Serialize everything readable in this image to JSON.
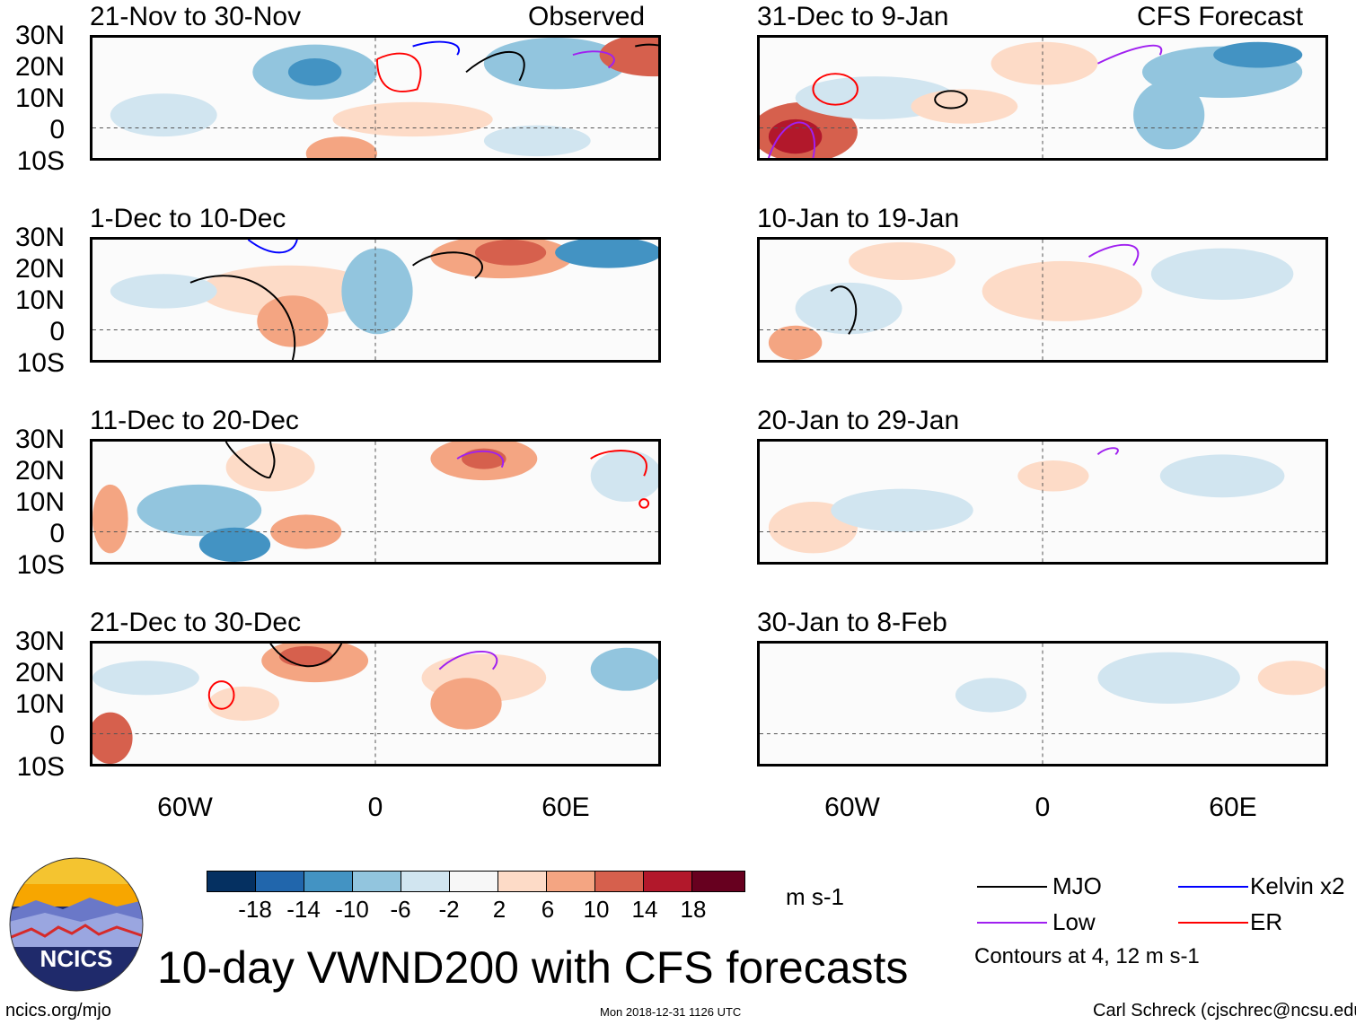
{
  "panels": {
    "left": [
      {
        "title": "21-Nov to 30-Nov",
        "tag": "Observed"
      },
      {
        "title": "1-Dec to 10-Dec",
        "tag": ""
      },
      {
        "title": "11-Dec to 20-Dec",
        "tag": ""
      },
      {
        "title": "21-Dec to 30-Dec",
        "tag": ""
      }
    ],
    "right": [
      {
        "title": "31-Dec to 9-Jan",
        "tag": "CFS Forecast"
      },
      {
        "title": "10-Jan to 19-Jan",
        "tag": ""
      },
      {
        "title": "20-Jan to 29-Jan",
        "tag": ""
      },
      {
        "title": "30-Jan to 8-Feb",
        "tag": ""
      }
    ]
  },
  "axes": {
    "lat_labels": [
      "30N",
      "20N",
      "10N",
      "0",
      "10S"
    ],
    "lon_labels": [
      "60W",
      "0",
      "60E"
    ]
  },
  "colorbar": {
    "ticks": [
      "-18",
      "-14",
      "-10",
      "-6",
      "-2",
      "2",
      "6",
      "10",
      "14",
      "18"
    ],
    "colors": [
      "#053061",
      "#2166ac",
      "#4393c3",
      "#92c5de",
      "#d1e5f0",
      "#f7f7f7",
      "#fddbc7",
      "#f4a582",
      "#d6604d",
      "#b2182b",
      "#67001f"
    ],
    "units": "m s-1"
  },
  "legend": {
    "items": [
      {
        "label": "MJO",
        "color": "#000000"
      },
      {
        "label": "Kelvin x2",
        "color": "#0000ff"
      },
      {
        "label": "Low",
        "color": "#a020f0"
      },
      {
        "label": "ER",
        "color": "#ff0000"
      }
    ],
    "contours_note": "Contours at 4, 12 m s-1"
  },
  "footer": {
    "main_title": "10-day VWND200 with CFS forecasts",
    "site": "ncics.org/mjo",
    "timestamp": "Mon 2018-12-31 1126 UTC",
    "author": "Carl Schreck (cjschrec@ncsu.edu)",
    "logo_text": "NCICS"
  }
}
